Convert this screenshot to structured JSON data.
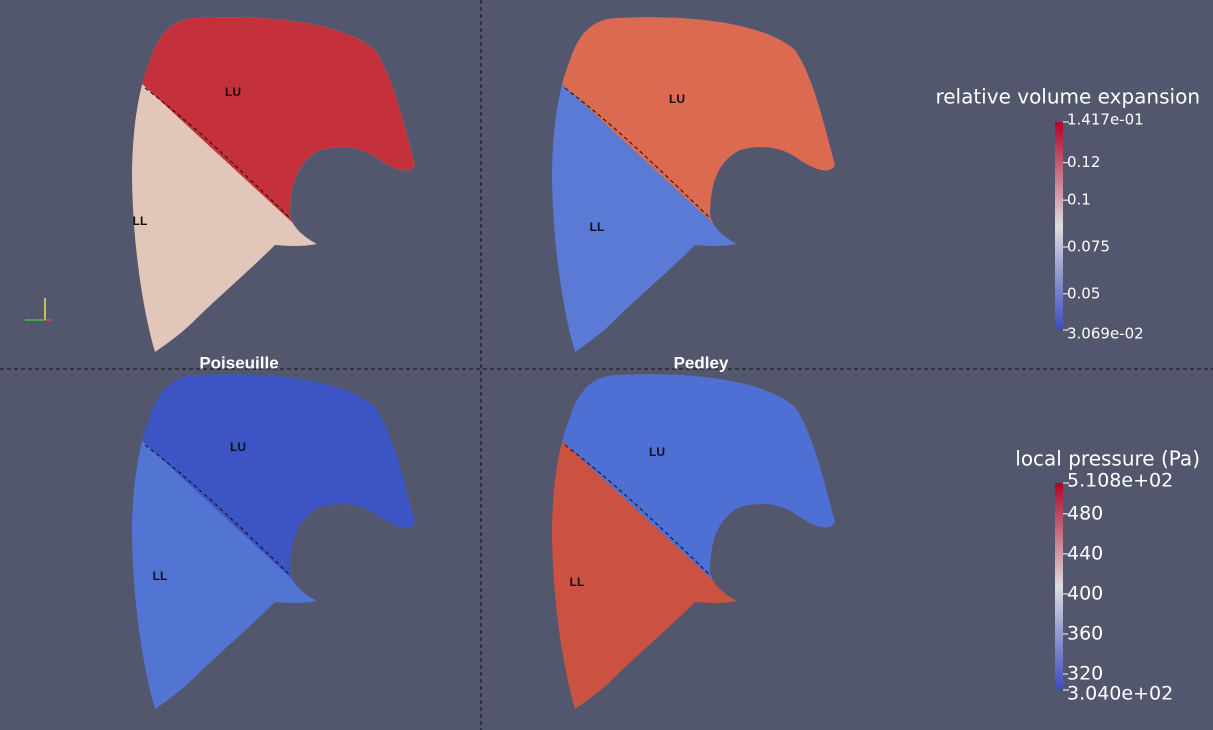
{
  "panels": [
    {
      "upper": "LU",
      "lower": "LL"
    },
    {
      "upper": "LU",
      "lower": "LL"
    },
    {
      "upper": "LU",
      "lower": "LL"
    },
    {
      "upper": "LU",
      "lower": "LL"
    }
  ],
  "column_titles": [
    "Poiseuille",
    "Pedley"
  ],
  "colorbars": [
    {
      "title": "relative volume expansion",
      "range": [
        {
          "value": 0.03069,
          "label": "3.069e-02"
        },
        {
          "value": 0.1417,
          "label": "1.417e-01"
        }
      ],
      "ticks": [
        0.05,
        0.075,
        0.1,
        0.12
      ]
    },
    {
      "title": "local pressure (Pa)",
      "range": [
        {
          "value": 304.0,
          "label": "3.040e+02"
        },
        {
          "value": 510.8,
          "label": "5.108e+02"
        }
      ],
      "ticks": [
        320,
        360,
        400,
        440,
        480
      ]
    }
  ]
}
